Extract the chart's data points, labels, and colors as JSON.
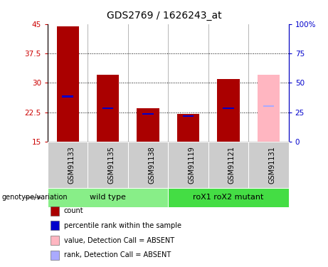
{
  "title": "GDS2769 / 1626243_at",
  "samples": [
    "GSM91133",
    "GSM91135",
    "GSM91138",
    "GSM91119",
    "GSM91121",
    "GSM91131"
  ],
  "count_values": [
    44.5,
    32.0,
    23.5,
    22.0,
    31.0,
    32.0
  ],
  "rank_values": [
    26.5,
    23.5,
    22.0,
    21.5,
    23.5,
    24.0
  ],
  "bar_bottom": 15,
  "absent_flags": [
    false,
    false,
    false,
    false,
    false,
    true
  ],
  "bar_color_normal": "#AA0000",
  "bar_color_absent": "#FFB6C1",
  "rank_color_normal": "#0000CC",
  "rank_color_absent": "#AAAAFF",
  "ylim_left": [
    15,
    45
  ],
  "ylim_right": [
    0,
    100
  ],
  "yticks_left": [
    15,
    22.5,
    30,
    37.5,
    45
  ],
  "yticks_right": [
    0,
    25,
    50,
    75,
    100
  ],
  "ytick_labels_left": [
    "15",
    "22.5",
    "30",
    "37.5",
    "45"
  ],
  "ytick_labels_right": [
    "0",
    "25",
    "50",
    "75",
    "100%"
  ],
  "groups": [
    {
      "label": "wild type",
      "start": 0,
      "end": 3,
      "color": "#88EE88"
    },
    {
      "label": "roX1 roX2 mutant",
      "start": 3,
      "end": 6,
      "color": "#44DD44"
    }
  ],
  "genotype_label": "genotype/variation",
  "legend_items": [
    {
      "label": "count",
      "color": "#AA0000"
    },
    {
      "label": "percentile rank within the sample",
      "color": "#0000CC"
    },
    {
      "label": "value, Detection Call = ABSENT",
      "color": "#FFB6C1"
    },
    {
      "label": "rank, Detection Call = ABSENT",
      "color": "#AAAAFF"
    }
  ],
  "bar_width": 0.55,
  "background_color": "#FFFFFF",
  "plot_bg_color": "#FFFFFF",
  "title_fontsize": 10,
  "tick_fontsize": 7.5,
  "sample_fontsize": 7,
  "legend_fontsize": 7,
  "group_fontsize": 8
}
